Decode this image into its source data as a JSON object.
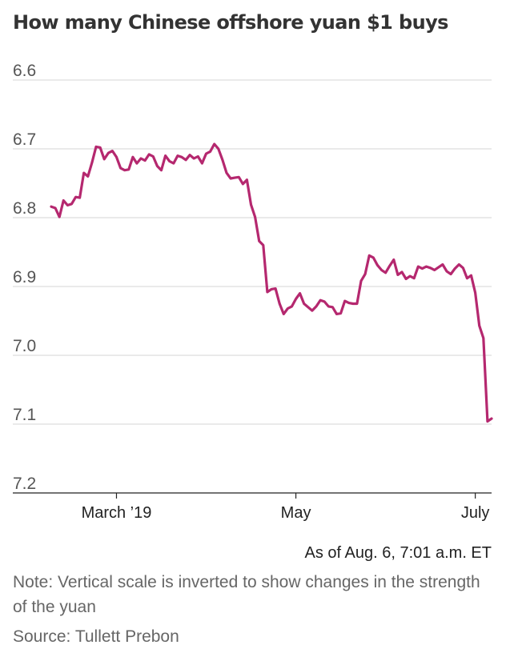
{
  "chart_data": {
    "type": "line",
    "title": "How many Chinese offshore yuan $1 buys",
    "xlabel": "",
    "ylabel": "",
    "y_inverted": true,
    "ylim": [
      6.6,
      7.2
    ],
    "yticks": [
      "6.6",
      "6.7",
      "6.8",
      "6.9",
      "7.0",
      "7.1",
      "7.2"
    ],
    "xticks": [
      {
        "label": "March ’19",
        "index": 16
      },
      {
        "label": "May",
        "index": 60
      },
      {
        "label": "July",
        "index": 104
      }
    ],
    "series": [
      {
        "name": "Offshore yuan per $1",
        "color": "#b5286f",
        "values": [
          6.784,
          6.786,
          6.799,
          6.775,
          6.782,
          6.78,
          6.77,
          6.771,
          6.735,
          6.74,
          6.72,
          6.697,
          6.698,
          6.715,
          6.706,
          6.703,
          6.712,
          6.728,
          6.731,
          6.73,
          6.712,
          6.721,
          6.714,
          6.717,
          6.708,
          6.711,
          6.725,
          6.731,
          6.71,
          6.718,
          6.721,
          6.71,
          6.712,
          6.716,
          6.709,
          6.714,
          6.711,
          6.721,
          6.707,
          6.704,
          6.693,
          6.7,
          6.716,
          6.735,
          6.743,
          6.742,
          6.741,
          6.751,
          6.745,
          6.781,
          6.799,
          6.834,
          6.84,
          6.908,
          6.904,
          6.903,
          6.925,
          6.94,
          6.932,
          6.929,
          6.918,
          6.91,
          6.925,
          6.93,
          6.935,
          6.929,
          6.92,
          6.922,
          6.929,
          6.93,
          6.94,
          6.939,
          6.921,
          6.924,
          6.925,
          6.925,
          6.892,
          6.882,
          6.855,
          6.858,
          6.869,
          6.876,
          6.88,
          6.87,
          6.861,
          6.883,
          6.879,
          6.889,
          6.885,
          6.888,
          6.871,
          6.874,
          6.871,
          6.873,
          6.876,
          6.872,
          6.868,
          6.878,
          6.882,
          6.874,
          6.868,
          6.873,
          6.888,
          6.884,
          6.909,
          6.957,
          6.975,
          7.096,
          7.092
        ]
      }
    ],
    "annotation": "As of Aug. 6, 7:01 a.m. ET"
  },
  "footer": {
    "note": "Note: Vertical scale is inverted to show changes in the strength of the yuan",
    "source": "Source: Tullett Prebon"
  }
}
